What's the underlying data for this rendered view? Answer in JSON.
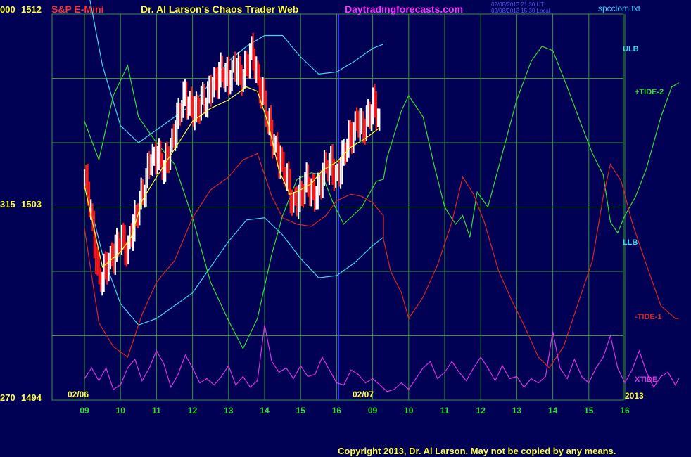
{
  "header": {
    "symbol": "S&P E-Mini",
    "title": "Dr. Al Larson's Chaos Trader Web",
    "site": "Daytradingforecasts.com",
    "stamp1": "02/08/2013 21:30 UT",
    "stamp2": "02/08/2013 15:30 Local",
    "file": "spcclom.txt"
  },
  "footer": {
    "copyright": "Copyright 2013, Dr. Al Larson. May not be copied by any means."
  },
  "colors": {
    "background": "#000055",
    "grid": "#2f9a2f",
    "divider": "#3333ff",
    "ulb_llb": "#3fd7e8",
    "tide2": "#33dd33",
    "tide1": "#dd2222",
    "xtide": "#dd33dd",
    "price_up": "#ffffff",
    "price_down": "#ff1a1a",
    "average": "#ffff33"
  },
  "chart_data": {
    "type": "line",
    "title": "S&P E-Mini",
    "y_labels": [
      {
        "left": "000",
        "price": "1512",
        "value": 1512
      },
      {
        "left": "315",
        "price": "1503",
        "value": 1503
      },
      {
        "left": "270",
        "price": "1494",
        "value": 1494
      }
    ],
    "ylim": [
      1494,
      1512
    ],
    "date_labels": [
      "02/06",
      "02/07",
      "2013"
    ],
    "x_ticks": [
      "09",
      "10",
      "11",
      "12",
      "13",
      "14",
      "15",
      "16",
      "09",
      "10",
      "11",
      "12",
      "13",
      "14",
      "15",
      "16"
    ],
    "legend": [
      "ULB",
      "+TIDE-2",
      "LLB",
      "-TIDE-1",
      "XTIDE"
    ],
    "series": [
      {
        "name": "ULB",
        "points": [
          [
            0.0,
            1514.0
          ],
          [
            0.5,
            1509.6
          ],
          [
            1.0,
            1506.8
          ],
          [
            1.5,
            1506.0
          ],
          [
            2.0,
            1506.6
          ],
          [
            2.5,
            1507.2
          ],
          [
            3.0,
            1507.8
          ],
          [
            3.5,
            1508.8
          ],
          [
            4.0,
            1509.8
          ],
          [
            4.5,
            1510.5
          ],
          [
            5.0,
            1511.0
          ],
          [
            5.5,
            1511.0
          ],
          [
            6.0,
            1510.0
          ],
          [
            6.5,
            1509.2
          ],
          [
            7.0,
            1509.3
          ],
          [
            7.5,
            1509.8
          ],
          [
            8.0,
            1510.4
          ],
          [
            8.3,
            1510.6
          ]
        ]
      },
      {
        "name": "LLB",
        "points": [
          [
            0.0,
            1504.2
          ],
          [
            0.5,
            1500.8
          ],
          [
            1.0,
            1498.5
          ],
          [
            1.5,
            1497.5
          ],
          [
            2.0,
            1497.8
          ],
          [
            2.5,
            1498.4
          ],
          [
            3.0,
            1499.0
          ],
          [
            3.5,
            1500.2
          ],
          [
            4.0,
            1501.4
          ],
          [
            4.5,
            1502.4
          ],
          [
            5.0,
            1502.5
          ],
          [
            5.5,
            1501.7
          ],
          [
            6.0,
            1500.6
          ],
          [
            6.5,
            1499.7
          ],
          [
            7.0,
            1499.8
          ],
          [
            7.5,
            1500.4
          ],
          [
            8.0,
            1501.2
          ],
          [
            8.3,
            1501.6
          ]
        ]
      },
      {
        "name": "+TIDE-2",
        "points": [
          [
            0.0,
            1507.0
          ],
          [
            0.4,
            1505.2
          ],
          [
            0.8,
            1508.2
          ],
          [
            1.2,
            1509.6
          ],
          [
            1.5,
            1507.2
          ],
          [
            2.0,
            1506.0
          ],
          [
            2.5,
            1505.0
          ],
          [
            3.0,
            1502.5
          ],
          [
            3.5,
            1499.5
          ],
          [
            4.0,
            1497.7
          ],
          [
            4.4,
            1496.4
          ],
          [
            4.8,
            1497.8
          ],
          [
            5.2,
            1500.8
          ],
          [
            5.5,
            1502.6
          ],
          [
            5.9,
            1504.3
          ],
          [
            6.3,
            1504.6
          ],
          [
            6.6,
            1504.5
          ],
          [
            6.9,
            1503.2
          ],
          [
            7.2,
            1502.2
          ],
          [
            7.7,
            1503.0
          ],
          [
            8.1,
            1504.2
          ],
          [
            8.3,
            1504.3
          ],
          [
            8.4,
            1505.3
          ],
          [
            8.8,
            1507.5
          ],
          [
            9.0,
            1508.2
          ],
          [
            9.4,
            1507.2
          ],
          [
            9.7,
            1505.0
          ],
          [
            10.0,
            1503.0
          ],
          [
            10.3,
            1502.2
          ],
          [
            10.5,
            1502.6
          ],
          [
            10.7,
            1501.6
          ],
          [
            10.9,
            1503.7
          ],
          [
            11.2,
            1503.0
          ],
          [
            11.6,
            1505.5
          ],
          [
            12.0,
            1508.0
          ],
          [
            12.4,
            1509.8
          ],
          [
            12.7,
            1510.5
          ],
          [
            13.0,
            1510.3
          ],
          [
            13.4,
            1508.6
          ],
          [
            13.8,
            1506.8
          ],
          [
            14.1,
            1505.5
          ],
          [
            14.4,
            1504.5
          ],
          [
            14.6,
            1502.3
          ],
          [
            14.8,
            1501.8
          ],
          [
            15.0,
            1502.6
          ],
          [
            15.3,
            1503.5
          ],
          [
            15.6,
            1504.8
          ],
          [
            16.0,
            1507.2
          ],
          [
            16.3,
            1508.6
          ],
          [
            16.5,
            1508.8
          ]
        ]
      },
      {
        "name": "-TIDE-1",
        "points": [
          [
            0.0,
            1502.0
          ],
          [
            0.4,
            1497.6
          ],
          [
            0.8,
            1496.5
          ],
          [
            1.2,
            1496.0
          ],
          [
            1.6,
            1498.0
          ],
          [
            2.0,
            1499.5
          ],
          [
            2.5,
            1500.5
          ],
          [
            3.0,
            1502.5
          ],
          [
            3.5,
            1503.8
          ],
          [
            4.0,
            1504.4
          ],
          [
            4.4,
            1505.2
          ],
          [
            4.8,
            1505.5
          ],
          [
            5.2,
            1503.5
          ],
          [
            5.5,
            1502.5
          ],
          [
            5.9,
            1502.2
          ],
          [
            6.3,
            1502.1
          ],
          [
            6.7,
            1502.6
          ],
          [
            7.0,
            1503.3
          ],
          [
            7.4,
            1503.6
          ],
          [
            7.7,
            1503.5
          ],
          [
            8.0,
            1503.2
          ],
          [
            8.3,
            1502.6
          ],
          [
            8.3,
            1501.5
          ],
          [
            8.5,
            1500.0
          ],
          [
            8.8,
            1499.0
          ],
          [
            9.0,
            1497.8
          ],
          [
            9.4,
            1498.8
          ],
          [
            9.8,
            1500.3
          ],
          [
            10.2,
            1502.3
          ],
          [
            10.5,
            1504.4
          ],
          [
            10.8,
            1503.6
          ],
          [
            11.1,
            1502.3
          ],
          [
            11.5,
            1500.0
          ],
          [
            11.9,
            1498.5
          ],
          [
            12.2,
            1497.5
          ],
          [
            12.6,
            1496.0
          ],
          [
            12.9,
            1495.5
          ],
          [
            13.3,
            1496.5
          ],
          [
            13.7,
            1498.5
          ],
          [
            14.1,
            1500.5
          ],
          [
            14.4,
            1503.5
          ],
          [
            14.6,
            1505.0
          ],
          [
            14.9,
            1504.2
          ],
          [
            15.2,
            1502.3
          ],
          [
            15.6,
            1500.3
          ],
          [
            16.0,
            1498.4
          ],
          [
            16.4,
            1497.8
          ],
          [
            16.5,
            1497.8
          ]
        ]
      },
      {
        "name": "XTIDE",
        "points": [
          [
            0.0,
            1495.0
          ],
          [
            0.2,
            1495.5
          ],
          [
            0.4,
            1494.9
          ],
          [
            0.6,
            1495.5
          ],
          [
            0.8,
            1494.5
          ],
          [
            1.0,
            1494.7
          ],
          [
            1.2,
            1495.5
          ],
          [
            1.4,
            1495.9
          ],
          [
            1.6,
            1494.9
          ],
          [
            1.8,
            1495.5
          ],
          [
            2.0,
            1496.3
          ],
          [
            2.2,
            1495.7
          ],
          [
            2.4,
            1494.6
          ],
          [
            2.6,
            1495.2
          ],
          [
            2.8,
            1496.1
          ],
          [
            3.0,
            1495.5
          ],
          [
            3.2,
            1494.8
          ],
          [
            3.4,
            1495.0
          ],
          [
            3.6,
            1494.7
          ],
          [
            3.8,
            1495.1
          ],
          [
            4.0,
            1495.6
          ],
          [
            4.2,
            1494.7
          ],
          [
            4.4,
            1495.1
          ],
          [
            4.6,
            1494.6
          ],
          [
            4.8,
            1494.9
          ],
          [
            5.0,
            1497.5
          ],
          [
            5.2,
            1495.8
          ],
          [
            5.4,
            1495.3
          ],
          [
            5.6,
            1495.5
          ],
          [
            5.8,
            1495.0
          ],
          [
            6.0,
            1495.6
          ],
          [
            6.2,
            1495.1
          ],
          [
            6.4,
            1495.2
          ],
          [
            6.6,
            1496.0
          ],
          [
            6.8,
            1495.4
          ],
          [
            7.0,
            1494.8
          ],
          [
            7.2,
            1494.7
          ],
          [
            7.4,
            1495.4
          ],
          [
            7.6,
            1495.2
          ],
          [
            7.8,
            1494.8
          ],
          [
            8.0,
            1495.0
          ],
          [
            8.2,
            1494.7
          ],
          [
            8.4,
            1494.4
          ],
          [
            8.6,
            1494.5
          ],
          [
            8.8,
            1494.8
          ],
          [
            9.0,
            1494.5
          ],
          [
            9.2,
            1495.0
          ],
          [
            9.4,
            1495.5
          ],
          [
            9.6,
            1495.8
          ],
          [
            9.8,
            1495.0
          ],
          [
            10.0,
            1495.3
          ],
          [
            10.2,
            1495.8
          ],
          [
            10.4,
            1495.3
          ],
          [
            10.6,
            1494.9
          ],
          [
            10.8,
            1495.5
          ],
          [
            11.0,
            1496.0
          ],
          [
            11.2,
            1495.5
          ],
          [
            11.4,
            1494.9
          ],
          [
            11.6,
            1495.6
          ],
          [
            11.8,
            1495.0
          ],
          [
            12.0,
            1495.1
          ],
          [
            12.2,
            1494.6
          ],
          [
            12.4,
            1495.0
          ],
          [
            12.6,
            1494.8
          ],
          [
            12.8,
            1495.1
          ],
          [
            13.0,
            1497.2
          ],
          [
            13.2,
            1495.5
          ],
          [
            13.4,
            1495.0
          ],
          [
            13.6,
            1495.9
          ],
          [
            13.8,
            1495.1
          ],
          [
            14.0,
            1494.8
          ],
          [
            14.2,
            1495.5
          ],
          [
            14.4,
            1496.0
          ],
          [
            14.6,
            1497.0
          ],
          [
            14.8,
            1495.5
          ],
          [
            15.0,
            1494.8
          ],
          [
            15.2,
            1495.4
          ],
          [
            15.4,
            1496.3
          ],
          [
            15.6,
            1495.3
          ],
          [
            15.8,
            1494.6
          ],
          [
            16.0,
            1495.1
          ],
          [
            16.2,
            1495.3
          ],
          [
            16.4,
            1494.7
          ],
          [
            16.5,
            1495.0
          ]
        ]
      },
      {
        "name": "average",
        "points": [
          [
            0.0,
            1504.0
          ],
          [
            0.5,
            1500.2
          ],
          [
            1.0,
            1500.9
          ],
          [
            1.3,
            1501.6
          ],
          [
            1.6,
            1503.3
          ],
          [
            2.0,
            1504.4
          ],
          [
            2.5,
            1505.7
          ],
          [
            3.0,
            1507.0
          ],
          [
            3.5,
            1507.6
          ],
          [
            4.0,
            1508.0
          ],
          [
            4.5,
            1508.6
          ],
          [
            4.8,
            1508.4
          ],
          [
            5.1,
            1506.9
          ],
          [
            5.4,
            1504.7
          ],
          [
            5.7,
            1503.6
          ],
          [
            6.0,
            1503.8
          ],
          [
            6.3,
            1504.1
          ],
          [
            6.6,
            1504.7
          ],
          [
            7.0,
            1505.1
          ],
          [
            7.4,
            1505.8
          ],
          [
            7.8,
            1506.2
          ],
          [
            8.2,
            1506.7
          ]
        ]
      },
      {
        "name": "price",
        "points": [
          [
            0.0,
            1504.5
          ],
          [
            0.2,
            1502.5
          ],
          [
            0.4,
            1499.5
          ],
          [
            0.6,
            1500.2
          ],
          [
            0.8,
            1500.8
          ],
          [
            1.0,
            1501.5
          ],
          [
            1.2,
            1501.0
          ],
          [
            1.4,
            1502.5
          ],
          [
            1.6,
            1503.5
          ],
          [
            1.8,
            1505.0
          ],
          [
            2.0,
            1505.5
          ],
          [
            2.2,
            1504.8
          ],
          [
            2.4,
            1505.8
          ],
          [
            2.6,
            1507.3
          ],
          [
            2.8,
            1508.2
          ],
          [
            3.0,
            1507.4
          ],
          [
            3.2,
            1507.8
          ],
          [
            3.4,
            1508.1
          ],
          [
            3.6,
            1508.8
          ],
          [
            3.8,
            1509.3
          ],
          [
            4.0,
            1509.0
          ],
          [
            4.2,
            1509.6
          ],
          [
            4.4,
            1508.9
          ],
          [
            4.6,
            1510.4
          ],
          [
            4.8,
            1509.1
          ],
          [
            5.0,
            1507.8
          ],
          [
            5.2,
            1506.2
          ],
          [
            5.4,
            1505.3
          ],
          [
            5.6,
            1504.4
          ],
          [
            5.8,
            1503.1
          ],
          [
            6.0,
            1503.6
          ],
          [
            6.2,
            1504.2
          ],
          [
            6.4,
            1503.4
          ],
          [
            6.6,
            1504.5
          ],
          [
            6.8,
            1505.1
          ],
          [
            7.0,
            1504.3
          ],
          [
            7.2,
            1505.5
          ],
          [
            7.4,
            1506.4
          ],
          [
            7.6,
            1507.0
          ],
          [
            7.8,
            1506.7
          ],
          [
            8.0,
            1507.9
          ],
          [
            8.2,
            1506.8
          ]
        ]
      }
    ]
  }
}
